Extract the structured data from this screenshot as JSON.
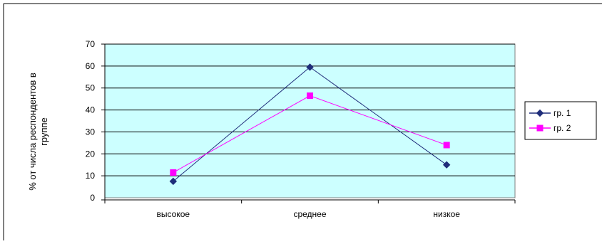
{
  "chart_data": {
    "type": "line",
    "categories": [
      "высокое",
      "среднее",
      "низкое"
    ],
    "series": [
      {
        "name": "гр. 1",
        "values": [
          7.5,
          59.5,
          15
        ],
        "color": "#1f2d7a",
        "marker": "diamond"
      },
      {
        "name": "гр. 2",
        "values": [
          11.5,
          46.5,
          24
        ],
        "color": "#ff00ff",
        "marker": "square"
      }
    ],
    "ylabel": "% от числа респондентов в группе",
    "ylabel_lines": [
      "% от числа респондентов в",
      "группе"
    ],
    "xlabel": "",
    "ylim": [
      0,
      70
    ],
    "yticks": [
      0,
      10,
      20,
      30,
      40,
      50,
      60,
      70
    ],
    "grid": true,
    "plot_background": "#ccffff",
    "legend_position": "right"
  }
}
